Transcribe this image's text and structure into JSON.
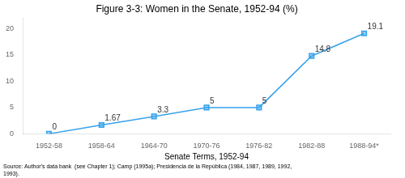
{
  "chart_data": {
    "type": "line",
    "title": "Figure 3-3: Women in the Senate, 1952-94 (%)",
    "xlabel": "Senate Terms, 1952-94",
    "annotations": [
      "Source: Author's data bank  (see Chapter 1); Camp (1995a); Presidencia de la República (1984, 1987, 1989, 1992,\n1993)."
    ],
    "categories": [
      "1952-58",
      "1958-64",
      "1964-70",
      "1970-76",
      "1976-82",
      "1982-88",
      "1988-94*"
    ],
    "values": [
      0,
      1.67,
      3.3,
      5,
      5,
      14.8,
      19.1
    ],
    "ylim": [
      0,
      22
    ],
    "yticks": [
      0,
      5,
      10,
      15,
      20
    ],
    "marker": "square",
    "data_labels": true,
    "grid": false,
    "legend": false
  }
}
